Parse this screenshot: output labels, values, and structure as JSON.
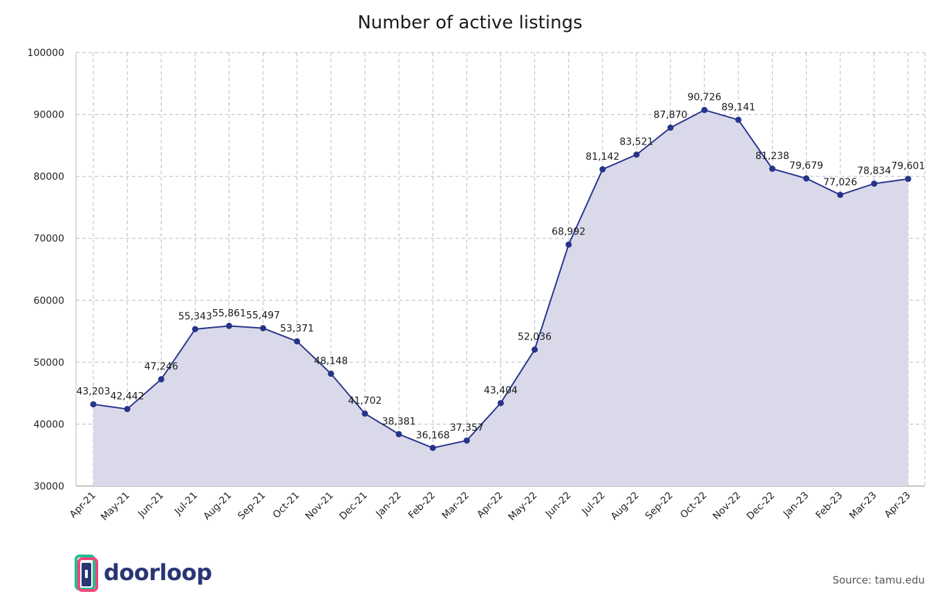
{
  "chart_data": {
    "type": "area",
    "title": "Number of active listings",
    "xlabel": "",
    "ylabel": "",
    "ylim": [
      30000,
      100000
    ],
    "yticks": [
      "30000",
      "40000",
      "50000",
      "60000",
      "70000",
      "80000",
      "90000",
      "100000"
    ],
    "grid": true,
    "categories": [
      "Apr-21",
      "May-21",
      "Jun-21",
      "Jul-21",
      "Aug-21",
      "Sep-21",
      "Oct-21",
      "Nov-21",
      "Dec-21",
      "Jan-22",
      "Feb-22",
      "Mar-22",
      "Apr-22",
      "May-22",
      "Jun-22",
      "Jul-22",
      "Aug-22",
      "Sep-22",
      "Oct-22",
      "Nov-22",
      "Dec-22",
      "Jan-23",
      "Feb-23",
      "Mar-23",
      "Apr-23"
    ],
    "values": [
      43203,
      42442,
      47246,
      55343,
      55861,
      55497,
      53371,
      48148,
      41702,
      38381,
      36168,
      37357,
      43404,
      52036,
      68992,
      81142,
      83521,
      87870,
      90726,
      89141,
      81238,
      79679,
      77026,
      78834,
      79601
    ],
    "labels": [
      "43,203",
      "42,442",
      "47,246",
      "55,343",
      "55,861",
      "55,497",
      "53,371",
      "48,148",
      "41,702",
      "38,381",
      "36,168",
      "37,357",
      "43,404",
      "52,036",
      "68,992",
      "81,142",
      "83,521",
      "87,870",
      "90,726",
      "89,141",
      "81,238",
      "79,679",
      "77,026",
      "78,834",
      "79,601"
    ],
    "colors": {
      "line": "#26348a",
      "fill": "#d9d9e9",
      "grid": "#b8b8c4"
    }
  },
  "logo": {
    "text": "doorloop"
  },
  "source": "Source: tamu.edu"
}
